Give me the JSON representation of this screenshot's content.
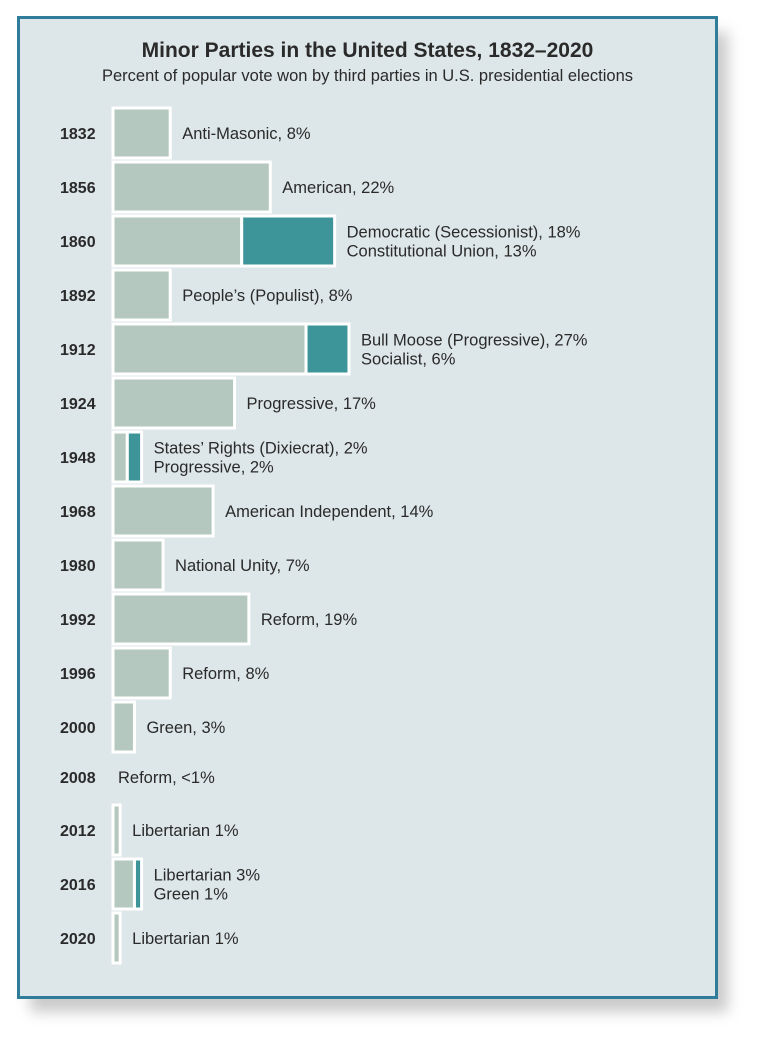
{
  "title": "Minor Parties in the United States, 1832–2020",
  "subtitle": "Percent of popular vote won by third parties in U.S. presidential elections",
  "colors": {
    "background": "#dde6e8",
    "border": "#2f7d9a",
    "primary_bar": "#b5c8bf",
    "secondary_bar": "#3d9499",
    "bar_outline": "#ffffff"
  },
  "chart_data": {
    "type": "bar",
    "orientation": "horizontal",
    "stacked": true,
    "unit": "%",
    "categories": [
      "1832",
      "1856",
      "1860",
      "1892",
      "1912",
      "1924",
      "1948",
      "1968",
      "1980",
      "1992",
      "1996",
      "2000",
      "2008",
      "2012",
      "2016",
      "2020"
    ],
    "series": [
      {
        "values": [
          8,
          22,
          18,
          8,
          27,
          17,
          2,
          14,
          7,
          19,
          8,
          3,
          0.5,
          1,
          3,
          1
        ]
      },
      {
        "values": [
          0,
          0,
          13,
          0,
          6,
          0,
          2,
          0,
          0,
          0,
          0,
          0,
          0,
          0,
          1,
          0
        ]
      }
    ],
    "labels": [
      [
        "Anti-Masonic, 8%"
      ],
      [
        "American, 22%"
      ],
      [
        "Democratic (Secessionist), 18%",
        "Constitutional Union, 13%"
      ],
      [
        "People’s (Populist), 8%"
      ],
      [
        "Bull Moose (Progressive), 27%",
        "Socialist, 6%"
      ],
      [
        "Progressive, 17%"
      ],
      [
        "States’ Rights (Dixiecrat), 2%",
        "Progressive, 2%"
      ],
      [
        "American Independent, 14%"
      ],
      [
        "National Unity, 7%"
      ],
      [
        "Reform, 19%"
      ],
      [
        "Reform, 8%"
      ],
      [
        "Green, 3%"
      ],
      [
        "Reform, <1%"
      ],
      [
        "Libertarian 1%"
      ],
      [
        "Libertarian 3%",
        "Green 1%"
      ],
      [
        "Libertarian 1%"
      ]
    ],
    "show_bars": [
      true,
      true,
      true,
      true,
      true,
      true,
      true,
      true,
      true,
      true,
      true,
      true,
      false,
      true,
      true,
      true
    ],
    "grid": false,
    "legend": "none"
  }
}
